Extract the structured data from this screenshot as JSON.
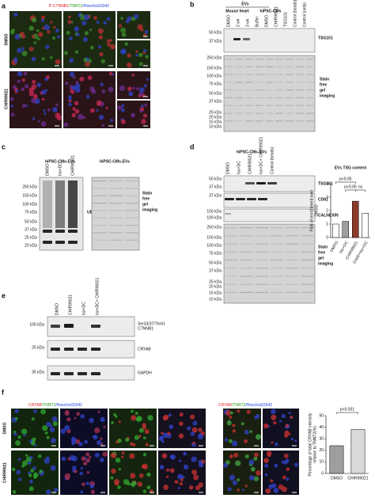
{
  "panels": {
    "a": {
      "letter": "a",
      "stain": [
        "P-CTNNB1",
        "/TNNT2",
        "/Hoechst33342"
      ],
      "rows": [
        "DMSO",
        "CHIR99021"
      ]
    },
    "b": {
      "letter": "b",
      "group": "EVs",
      "subgroups": [
        "Mouse heart",
        "hiPSC-CMs"
      ],
      "lanes": [
        "DMSO",
        "2 wk",
        "3 wk",
        "Buffer",
        "DMSO",
        "CHIR99021",
        "TSG101",
        "Control (beads)",
        "Control (cells)"
      ],
      "markers_top": [
        "50 kDa",
        "37 kDa"
      ],
      "markers": [
        "250 kDa",
        "150 kDa",
        "100 kDa",
        "75 kDa",
        "50 kDa",
        "37 kDa",
        "25 kDa",
        "20 kDa",
        "15 kDa",
        "10 kDa"
      ],
      "labels": [
        "TSG101"
      ],
      "stain": [
        "Stain",
        "free",
        "gel",
        "imaging"
      ]
    },
    "c": {
      "letter": "c",
      "group": "hiPSC-CMs-EVs",
      "group2": "hiPSC-CMs-EVs",
      "lanes": [
        "DMSO",
        "Iso+DC",
        "CHIR99021"
      ],
      "markers": [
        "250 kDa",
        "150 kDa",
        "100 kDa",
        "75 kDa",
        "50 kDa",
        "37 kDa",
        "25 kDa",
        "20 kDa"
      ],
      "label": "UB",
      "stain": [
        "Stain",
        "free",
        "gel",
        "imaging"
      ]
    },
    "d": {
      "letter": "d",
      "group": "hiPSC-CMs-EVs",
      "lanes": [
        "DMSO",
        "Iso+DC",
        "CHIR99021",
        "Iso+DC+ CHIR99021",
        "Control (beads)"
      ],
      "markers_blot": [
        "50 kDa",
        "37 kDa",
        "37 kDa",
        "150 kDa",
        "100 kDa"
      ],
      "markers": [
        "250 kDa",
        "150 kDa",
        "100 kDa",
        "75 kDa",
        "50 kDa",
        "37 kDa",
        "25 kDa",
        "20 kDa",
        "15 kDa",
        "10 kDa"
      ],
      "labels": [
        "TSG101",
        "CD81",
        "CALNEXIN"
      ],
      "stain": [
        "Stain",
        "free",
        "gel",
        "imaging"
      ]
    },
    "e": {
      "letter": "e",
      "lanes": [
        "DMSO",
        "CHIR99021",
        "Iso+DC",
        "Iso+DC+ CHIR99021"
      ],
      "markers": [
        "100 kDa",
        "25 kDa",
        "35 kDa"
      ],
      "labels": [
        [
          "Ser33/37/Thr41",
          "CTNNB1"
        ],
        [
          "CRYAB"
        ],
        [
          "GAPDH"
        ]
      ]
    },
    "f": {
      "letter": "f",
      "stain": [
        "CRYAB",
        "/TNNT2",
        "/Hoechst33342"
      ],
      "stain2": [
        "CRYAB",
        "/TNNT2",
        "/Hoechst33342"
      ],
      "rows": [
        "DMSO",
        "CHIR99021"
      ]
    }
  },
  "chart_data": [
    {
      "type": "bar",
      "title": "EVs TSG content",
      "ylabel": [
        "Fold of enrichment over",
        "DMSO"
      ],
      "categories": [
        "DMSO",
        "Iso+DC",
        "CHIR99021",
        "CHIR+Iso+DC"
      ],
      "values": [
        1,
        1.2,
        2.7,
        1.8
      ],
      "colors": [
        "#ffffff",
        "#9e9e9e",
        "#8b3a2a",
        "#ffffff"
      ],
      "ylim": [
        0,
        4
      ],
      "yticks": [
        0,
        1,
        2,
        3,
        4
      ],
      "annotations": [
        "p<0.05",
        "p<0.05",
        "ns"
      ]
    },
    {
      "type": "bar",
      "ylabel": [
        "Percentage of total CRYAB intensity",
        "relative to TNNT2(%)"
      ],
      "categories": [
        "DMSO",
        "CHIR99021"
      ],
      "values": [
        24,
        38
      ],
      "colors": [
        "#9e9e9e",
        "#d9d9d9"
      ],
      "ylim": [
        0,
        50
      ],
      "yticks": [
        0,
        10,
        20,
        30,
        40,
        50
      ],
      "annotations": [
        "p<0.001"
      ]
    }
  ]
}
